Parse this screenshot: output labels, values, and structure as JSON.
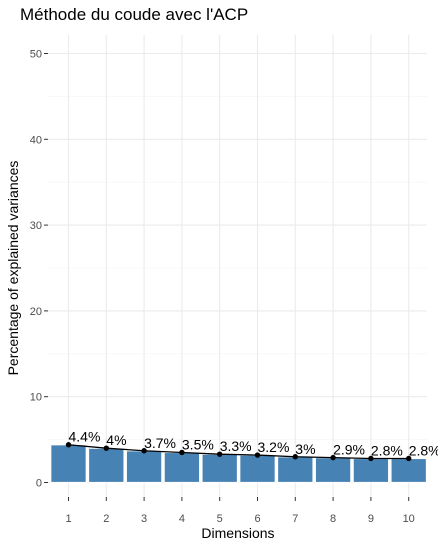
{
  "chart_data": {
    "type": "bar",
    "title": "Méthode du coude avec l'ACP",
    "xlabel": "Dimensions",
    "ylabel": "Percentage of explained variances",
    "categories": [
      "1",
      "2",
      "3",
      "4",
      "5",
      "6",
      "7",
      "8",
      "9",
      "10"
    ],
    "values": [
      4.4,
      4.0,
      3.7,
      3.5,
      3.3,
      3.2,
      3.0,
      2.9,
      2.8,
      2.8
    ],
    "data_labels": [
      "4.4%",
      "4%",
      "3.7%",
      "3.5%",
      "3.3%",
      "3.2%",
      "3%",
      "2.9%",
      "2.8%",
      "2.8%"
    ],
    "yticks": [
      0,
      10,
      20,
      30,
      40,
      50
    ],
    "ytick_labels": [
      "0",
      "10",
      "20",
      "30",
      "40",
      "50"
    ],
    "ylim": [
      0,
      52
    ],
    "grid": true,
    "line_overlay": true,
    "colors": {
      "bar": "#4682b4",
      "bar_outline": "#ffffff",
      "line": "#000000",
      "point": "#000000"
    }
  }
}
